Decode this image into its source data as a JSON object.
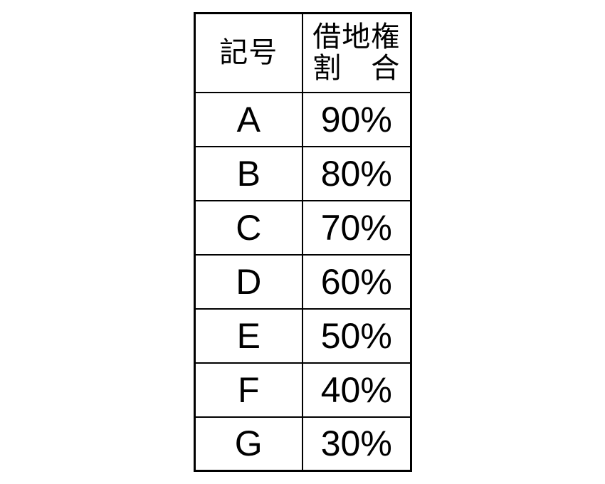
{
  "page": {
    "background_color": "#ffffff",
    "text_color": "#000000",
    "border_color": "#000000"
  },
  "table": {
    "header": {
      "symbol_label": "記号",
      "ratio_label_line1": "借地権",
      "ratio_label_line2": "割　合"
    },
    "rows": [
      {
        "symbol": "A",
        "ratio": "90%"
      },
      {
        "symbol": "B",
        "ratio": "80%"
      },
      {
        "symbol": "C",
        "ratio": "70%"
      },
      {
        "symbol": "D",
        "ratio": "60%"
      },
      {
        "symbol": "E",
        "ratio": "50%"
      },
      {
        "symbol": "F",
        "ratio": "40%"
      },
      {
        "symbol": "G",
        "ratio": "30%"
      }
    ]
  },
  "chart_data": {
    "type": "table",
    "title": "借地権割合",
    "columns": [
      "記号",
      "借地権割合"
    ],
    "categories": [
      "A",
      "B",
      "C",
      "D",
      "E",
      "F",
      "G"
    ],
    "values": [
      90,
      80,
      70,
      60,
      50,
      40,
      30
    ],
    "unit": "%"
  }
}
